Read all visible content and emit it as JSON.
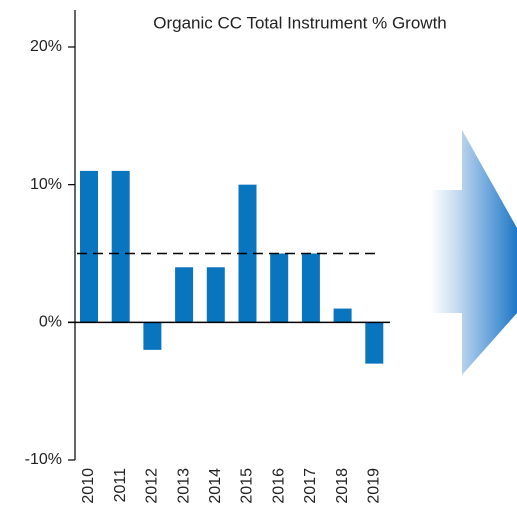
{
  "chart_data": {
    "type": "bar",
    "title": "Organic CC Total Instrument % Growth",
    "categories": [
      "2010",
      "2011",
      "2012",
      "2013",
      "2014",
      "2015",
      "2016",
      "2017",
      "2018",
      "2019"
    ],
    "values": [
      11,
      11,
      -2,
      4,
      4,
      10,
      5,
      5,
      1,
      -3
    ],
    "color": "#0a75bf",
    "ylim": [
      -10,
      20
    ],
    "yticks": [
      {
        "value": -10,
        "label": "-10%"
      },
      {
        "value": 0,
        "label": "0%"
      },
      {
        "value": 10,
        "label": "10%"
      },
      {
        "value": 20,
        "label": "20%"
      }
    ],
    "reference_line": 5
  }
}
